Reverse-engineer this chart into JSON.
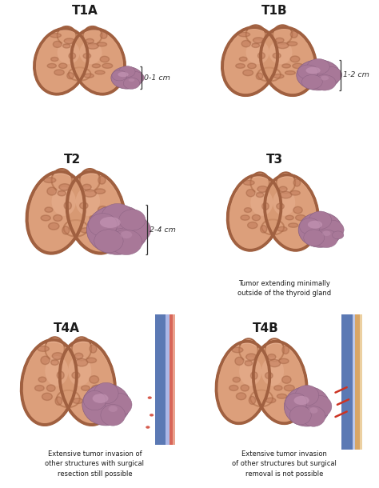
{
  "bg_color": "#ffffff",
  "thyroid_base": "#d4956e",
  "thyroid_light": "#e8b090",
  "thyroid_dark": "#b87050",
  "thyroid_edge": "#a06040",
  "tumor_base": "#a87898",
  "tumor_light": "#c899b8",
  "tumor_dark": "#886080",
  "vessel_blue": "#4466aa",
  "vessel_blue2": "#6688cc",
  "vessel_red": "#cc3322",
  "vessel_orange": "#cc8833",
  "text_dark": "#1a1a1a",
  "bracket_color": "#333333",
  "figsize": [
    4.74,
    6.1
  ],
  "dpi": 100,
  "panels": [
    {
      "label": "T1A",
      "meas": "0-1 cm",
      "row": 0,
      "col": 0
    },
    {
      "label": "T1B",
      "meas": "1-2 cm",
      "row": 0,
      "col": 1
    },
    {
      "label": "T2",
      "meas": "2-4 cm",
      "row": 1,
      "col": 0
    },
    {
      "label": "T3",
      "meas": null,
      "row": 1,
      "col": 1,
      "caption": "Tumor extending minimally\noutside of the thyroid gland"
    },
    {
      "label": "T4A",
      "meas": null,
      "row": 2,
      "col": 0,
      "caption": "Extensive tumor invasion of\nother structures with surgical\nresection still possible"
    },
    {
      "label": "T4B",
      "meas": null,
      "row": 2,
      "col": 1,
      "caption": "Extensive tumor invasion\nof other structures but surgical\nremoval is not possible"
    }
  ]
}
